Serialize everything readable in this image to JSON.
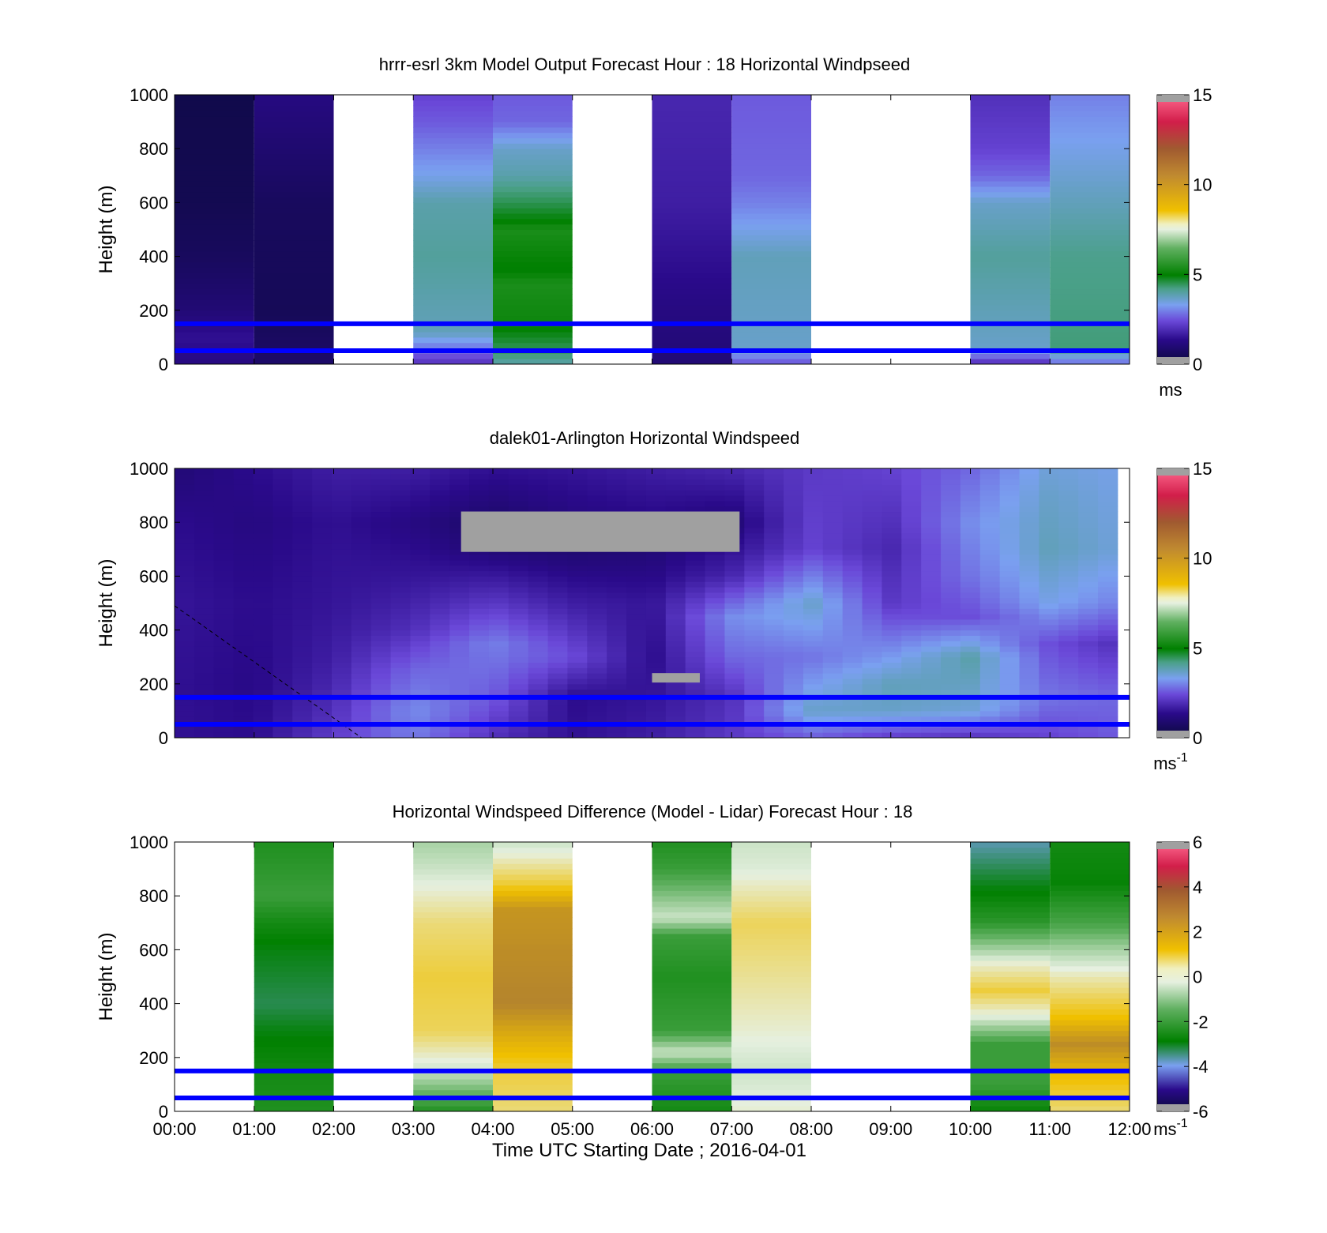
{
  "colors": {
    "overlay_line": "#0000ff",
    "missing": "#a0a0a0",
    "speed_scale": [
      "#0a0a3a",
      "#2a0a8a",
      "#6a48d8",
      "#7aa0f0",
      "#4aa088",
      "#008000",
      "#60b060",
      "#e6f0e0",
      "#f0c000",
      "#a05a30",
      "#d21e4a",
      "#ff5a8a"
    ],
    "diff_scale": [
      "#0a0a3a",
      "#2a0a8a",
      "#7aa0f0",
      "#008000",
      "#60b060",
      "#e6f0e0",
      "#f0c000",
      "#b08030",
      "#d21e4a"
    ]
  },
  "shared": {
    "x_ticks": [
      "00:00",
      "01:00",
      "02:00",
      "03:00",
      "04:00",
      "05:00",
      "06:00",
      "07:00",
      "08:00",
      "09:00",
      "10:00",
      "11:00",
      "12:00"
    ],
    "xlabel": "Time UTC  Starting Date ; 2016-04-01"
  },
  "chart_data": [
    {
      "type": "heatmap",
      "title": "hrrr-esrl 3km Model Output   Forecast Hour : 18 Horizontal Windpseed",
      "ylabel": "Height (m)",
      "y_ticks": [
        "0",
        "200",
        "400",
        "600",
        "800",
        "1000"
      ],
      "xlim": [
        0,
        12
      ],
      "ylim": [
        0,
        1000
      ],
      "colorbar": {
        "ticks": [
          "0",
          "5",
          "10",
          "15"
        ],
        "range": [
          0,
          15
        ],
        "unit": "ms"
      },
      "overlay_lines_m": [
        50,
        150
      ],
      "columns": [
        {
          "hour": 0,
          "levels": [
            [
              0,
              1.2
            ],
            [
              100,
              1.5
            ],
            [
              200,
              1.0
            ],
            [
              400,
              0.6
            ],
            [
              600,
              0.4
            ],
            [
              1000,
              0.3
            ]
          ]
        },
        {
          "hour": 1,
          "levels": [
            [
              0,
              0.8
            ],
            [
              200,
              0.5
            ],
            [
              600,
              0.6
            ],
            [
              1000,
              1.2
            ]
          ]
        },
        {
          "hour": 3,
          "levels": [
            [
              0,
              2.2
            ],
            [
              50,
              3.2
            ],
            [
              120,
              4.8
            ],
            [
              400,
              5.2
            ],
            [
              600,
              5.0
            ],
            [
              700,
              4.2
            ],
            [
              800,
              3.6
            ],
            [
              900,
              3.0
            ],
            [
              1000,
              2.6
            ]
          ]
        },
        {
          "hour": 4,
          "levels": [
            [
              0,
              5.0
            ],
            [
              60,
              6.0
            ],
            [
              150,
              7.0
            ],
            [
              300,
              7.2
            ],
            [
              350,
              6.8
            ],
            [
              500,
              7.2
            ],
            [
              600,
              6.0
            ],
            [
              700,
              5.0
            ],
            [
              800,
              4.6
            ],
            [
              900,
              3.2
            ],
            [
              1000,
              3.0
            ]
          ]
        },
        {
          "hour": 6,
          "levels": [
            [
              0,
              1.0
            ],
            [
              200,
              1.2
            ],
            [
              600,
              1.8
            ],
            [
              1000,
              2.0
            ]
          ]
        },
        {
          "hour": 7,
          "levels": [
            [
              0,
              2.8
            ],
            [
              60,
              4.6
            ],
            [
              400,
              4.8
            ],
            [
              600,
              3.6
            ],
            [
              700,
              3.2
            ],
            [
              1000,
              3.0
            ]
          ]
        },
        {
          "hour": 10,
          "levels": [
            [
              0,
              2.0
            ],
            [
              60,
              4.6
            ],
            [
              400,
              5.2
            ],
            [
              600,
              4.6
            ],
            [
              700,
              3.2
            ],
            [
              800,
              2.6
            ],
            [
              1000,
              2.2
            ]
          ]
        },
        {
          "hour": 11,
          "levels": [
            [
              0,
              3.2
            ],
            [
              60,
              5.6
            ],
            [
              400,
              5.4
            ],
            [
              600,
              4.8
            ],
            [
              800,
              4.2
            ],
            [
              1000,
              3.6
            ]
          ]
        }
      ]
    },
    {
      "type": "heatmap",
      "title": "dalek01-Arlington  Horizontal Windspeed",
      "ylabel": "Height (m)",
      "y_ticks": [
        "0",
        "200",
        "400",
        "600",
        "800",
        "1000"
      ],
      "xlim": [
        0,
        12
      ],
      "ylim": [
        0,
        1000
      ],
      "colorbar": {
        "ticks": [
          "0",
          "5",
          "10",
          "15"
        ],
        "range": [
          0,
          15
        ],
        "unit": "ms",
        "unit_exp": "-1"
      },
      "overlay_lines_m": [
        50,
        150
      ],
      "observation_end_hour": 11.85,
      "profiles": [
        {
          "hour": 0.0,
          "levels": [
            [
              0,
              1.5
            ],
            [
              200,
              1.5
            ],
            [
              500,
              1.6
            ],
            [
              800,
              1.4
            ],
            [
              1000,
              1.0
            ]
          ]
        },
        {
          "hour": 1.0,
          "levels": [
            [
              0,
              1.4
            ],
            [
              200,
              1.3
            ],
            [
              500,
              1.4
            ],
            [
              800,
              1.2
            ],
            [
              1000,
              1.4
            ]
          ]
        },
        {
          "hour": 2.0,
          "levels": [
            [
              0,
              2.5
            ],
            [
              100,
              2.2
            ],
            [
              300,
              1.8
            ],
            [
              500,
              1.6
            ],
            [
              800,
              1.5
            ],
            [
              1000,
              1.8
            ]
          ]
        },
        {
          "hour": 3.0,
          "levels": [
            [
              0,
              3.5
            ],
            [
              100,
              3.8
            ],
            [
              250,
              3.2
            ],
            [
              400,
              2.2
            ],
            [
              600,
              1.6
            ],
            [
              800,
              1.2
            ],
            [
              1000,
              1.8
            ]
          ]
        },
        {
          "hour": 4.0,
          "levels": [
            [
              0,
              2.2
            ],
            [
              150,
              3.0
            ],
            [
              350,
              3.6
            ],
            [
              500,
              2.4
            ],
            [
              700,
              1.0
            ],
            [
              800,
              0.8
            ],
            [
              1000,
              1.5
            ]
          ]
        },
        {
          "hour": 5.0,
          "levels": [
            [
              0,
              1.5
            ],
            [
              150,
              1.4
            ],
            [
              300,
              2.8
            ],
            [
              500,
              1.8
            ],
            [
              700,
              0.9
            ],
            [
              1000,
              1.6
            ]
          ]
        },
        {
          "hour": 6.0,
          "levels": [
            [
              0,
              1.8
            ],
            [
              150,
              1.6
            ],
            [
              300,
              1.4
            ],
            [
              500,
              1.6
            ],
            [
              700,
              1.0
            ],
            [
              1000,
              1.8
            ]
          ]
        },
        {
          "hour": 7.0,
          "levels": [
            [
              0,
              2.4
            ],
            [
              150,
              2.2
            ],
            [
              300,
              3.2
            ],
            [
              450,
              3.8
            ],
            [
              600,
              2.0
            ],
            [
              800,
              1.0
            ],
            [
              1000,
              2.0
            ]
          ]
        },
        {
          "hour": 8.0,
          "levels": [
            [
              0,
              3.0
            ],
            [
              100,
              4.6
            ],
            [
              300,
              3.4
            ],
            [
              500,
              4.6
            ],
            [
              700,
              2.6
            ],
            [
              1000,
              2.4
            ]
          ]
        },
        {
          "hour": 9.0,
          "levels": [
            [
              0,
              2.4
            ],
            [
              100,
              4.6
            ],
            [
              200,
              4.8
            ],
            [
              350,
              3.6
            ],
            [
              500,
              2.4
            ],
            [
              700,
              2.0
            ],
            [
              1000,
              2.6
            ]
          ]
        },
        {
          "hour": 10.0,
          "levels": [
            [
              0,
              2.2
            ],
            [
              100,
              4.4
            ],
            [
              300,
              5.0
            ],
            [
              450,
              2.8
            ],
            [
              600,
              3.4
            ],
            [
              800,
              3.8
            ],
            [
              1000,
              3.2
            ]
          ]
        },
        {
          "hour": 11.0,
          "levels": [
            [
              0,
              2.6
            ],
            [
              150,
              3.4
            ],
            [
              350,
              2.8
            ],
            [
              500,
              4.2
            ],
            [
              700,
              4.8
            ],
            [
              900,
              4.6
            ],
            [
              1000,
              4.4
            ]
          ]
        },
        {
          "hour": 11.85,
          "levels": [
            [
              0,
              3.0
            ],
            [
              150,
              3.2
            ],
            [
              350,
              2.2
            ],
            [
              500,
              3.6
            ],
            [
              700,
              4.4
            ],
            [
              1000,
              4.2
            ]
          ]
        }
      ],
      "missing_regions": [
        {
          "x": [
            3.6,
            7.1
          ],
          "y": [
            690,
            840
          ]
        },
        {
          "x": [
            6.0,
            6.6
          ],
          "y": [
            205,
            240
          ]
        }
      ],
      "reference_line": {
        "x": [
          0,
          2.35
        ],
        "y": [
          490,
          0
        ]
      }
    },
    {
      "type": "heatmap",
      "title": "Horizontal Windspeed Difference (Model - Lidar) Forecast Hour : 18",
      "ylabel": "Height (m)",
      "y_ticks": [
        "0",
        "200",
        "400",
        "600",
        "800",
        "1000"
      ],
      "xlim": [
        0,
        12
      ],
      "ylim": [
        0,
        1000
      ],
      "colorbar": {
        "ticks": [
          "-6",
          "-4",
          "-2",
          "0",
          "2",
          "4",
          "6"
        ],
        "range": [
          -6,
          6
        ],
        "unit": "ms",
        "unit_exp": "-1"
      },
      "overlay_lines_m": [
        50,
        150
      ],
      "columns": [
        {
          "hour": 1,
          "levels": [
            [
              0,
              -1.0
            ],
            [
              150,
              -1.2
            ],
            [
              300,
              -1.6
            ],
            [
              400,
              -2.0
            ],
            [
              600,
              -1.6
            ],
            [
              700,
              -1.2
            ],
            [
              800,
              -0.6
            ],
            [
              1000,
              -1.0
            ]
          ]
        },
        {
          "hour": 3,
          "levels": [
            [
              0,
              -1.0
            ],
            [
              80,
              0.2
            ],
            [
              150,
              1.2
            ],
            [
              300,
              2.4
            ],
            [
              500,
              2.6
            ],
            [
              700,
              2.2
            ],
            [
              900,
              1.2
            ],
            [
              1000,
              0.8
            ]
          ]
        },
        {
          "hour": 4,
          "levels": [
            [
              0,
              2.2
            ],
            [
              150,
              2.6
            ],
            [
              300,
              3.6
            ],
            [
              400,
              4.4
            ],
            [
              600,
              4.2
            ],
            [
              750,
              4.0
            ],
            [
              850,
              2.6
            ],
            [
              950,
              1.6
            ],
            [
              1000,
              1.2
            ]
          ]
        },
        {
          "hour": 6,
          "levels": [
            [
              0,
              -1.2
            ],
            [
              150,
              -0.6
            ],
            [
              220,
              1.2
            ],
            [
              300,
              -0.6
            ],
            [
              500,
              -1.0
            ],
            [
              650,
              -0.6
            ],
            [
              720,
              1.2
            ],
            [
              800,
              0.4
            ],
            [
              900,
              -0.6
            ],
            [
              1000,
              -1.0
            ]
          ]
        },
        {
          "hour": 7,
          "levels": [
            [
              0,
              1.6
            ],
            [
              150,
              1.2
            ],
            [
              300,
              1.6
            ],
            [
              500,
              2.0
            ],
            [
              700,
              2.4
            ],
            [
              900,
              1.4
            ],
            [
              1000,
              1.2
            ]
          ]
        },
        {
          "hour": 10,
          "levels": [
            [
              0,
              -1.4
            ],
            [
              100,
              -0.6
            ],
            [
              250,
              -0.6
            ],
            [
              350,
              1.4
            ],
            [
              450,
              2.6
            ],
            [
              550,
              1.6
            ],
            [
              700,
              -0.8
            ],
            [
              900,
              -2.0
            ],
            [
              1000,
              -2.6
            ]
          ]
        },
        {
          "hour": 11,
          "levels": [
            [
              0,
              2.2
            ],
            [
              150,
              3.2
            ],
            [
              250,
              4.2
            ],
            [
              350,
              3.0
            ],
            [
              500,
              1.8
            ],
            [
              600,
              0.8
            ],
            [
              700,
              -0.4
            ],
            [
              850,
              -1.4
            ],
            [
              1000,
              -1.2
            ]
          ]
        }
      ]
    }
  ]
}
